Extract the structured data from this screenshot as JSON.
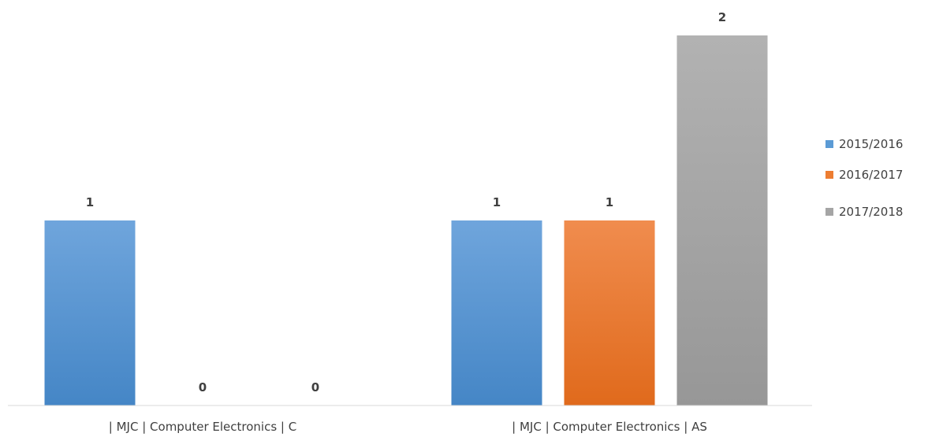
{
  "chart_data": {
    "type": "bar",
    "categories": [
      "| MJC | Computer Electronics | C",
      "| MJC | Computer Electronics | AS"
    ],
    "series": [
      {
        "name": "2015/2016",
        "values": [
          1,
          1
        ],
        "color": "#5b9bd5"
      },
      {
        "name": "2016/2017",
        "values": [
          0,
          1
        ],
        "color": "#ed7d31"
      },
      {
        "name": "2017/2018",
        "values": [
          0,
          2
        ],
        "color": "#a5a5a5"
      }
    ],
    "data_labels": true,
    "ylim": [
      0,
      2
    ],
    "legend_position": "right",
    "grid": false
  }
}
